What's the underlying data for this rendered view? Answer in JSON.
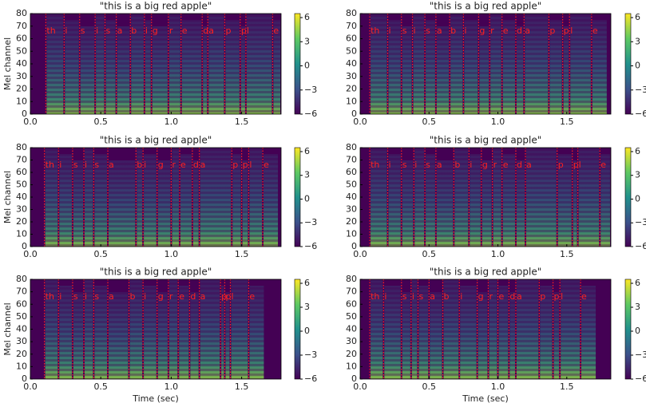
{
  "chart_data": [
    {
      "type": "spectrogram",
      "title": "\"this is a big red apple\"",
      "ylabel": "Mel channel",
      "xlim": [
        0,
        1.78
      ],
      "ylim": [
        0,
        80
      ],
      "xticks": [
        {
          "value": 0,
          "label": "0.0"
        },
        {
          "value": 0.5,
          "label": "0.5"
        },
        {
          "value": 1,
          "label": "1.0"
        },
        {
          "value": 1.5,
          "label": "1.5"
        }
      ],
      "yticks": [
        0,
        10,
        20,
        30,
        40,
        50,
        60,
        70,
        80
      ],
      "clim": [
        -6,
        6.5
      ],
      "cticks": [
        {
          "value": -6,
          "label": "−6"
        },
        {
          "value": -3,
          "label": "−3"
        },
        0,
        3,
        6
      ],
      "phonemes": {
        "labels": [
          "th",
          "i",
          "s",
          "i",
          "s",
          "a",
          "b",
          "i",
          "g",
          "r",
          "e",
          "d",
          "a",
          "p",
          "p",
          "l",
          "e"
        ],
        "times": [
          0.11,
          0.24,
          0.35,
          0.46,
          0.53,
          0.61,
          0.71,
          0.81,
          0.86,
          0.98,
          1.07,
          1.22,
          1.26,
          1.38,
          1.49,
          1.53,
          1.72
        ]
      }
    },
    {
      "type": "spectrogram",
      "title": "\"this is a big red apple\"",
      "xlim": [
        0,
        1.82
      ],
      "ylim": [
        0,
        80
      ],
      "xticks": [
        {
          "value": 0,
          "label": "0.0"
        },
        {
          "value": 0.5,
          "label": "0.5"
        },
        {
          "value": 1,
          "label": "1.0"
        },
        {
          "value": 1.5,
          "label": "1.5"
        }
      ],
      "yticks": [
        0,
        10,
        20,
        30,
        40,
        50,
        60,
        70,
        80
      ],
      "clim": [
        -6,
        6.5
      ],
      "cticks": [
        {
          "value": -6,
          "label": "−6"
        },
        {
          "value": -3,
          "label": "−3"
        },
        0,
        3,
        6
      ],
      "phonemes": {
        "labels": [
          "th",
          "i",
          "s",
          "i",
          "s",
          "a",
          "b",
          "i",
          "g",
          "r",
          "e",
          "d",
          "a",
          "p",
          "p",
          "l",
          "e"
        ],
        "times": [
          0.07,
          0.2,
          0.3,
          0.38,
          0.47,
          0.55,
          0.65,
          0.75,
          0.86,
          0.94,
          1.03,
          1.13,
          1.19,
          1.37,
          1.47,
          1.52,
          1.68
        ]
      }
    },
    {
      "type": "spectrogram",
      "title": "\"this is a big red apple\"",
      "ylabel": "Mel channel",
      "xlim": [
        0,
        1.78
      ],
      "ylim": [
        0,
        80
      ],
      "xticks": [
        {
          "value": 0,
          "label": "0.0"
        },
        {
          "value": 0.5,
          "label": "0.5"
        },
        {
          "value": 1,
          "label": "1.0"
        },
        {
          "value": 1.5,
          "label": "1.5"
        }
      ],
      "yticks": [
        0,
        10,
        20,
        30,
        40,
        50,
        60,
        70,
        80
      ],
      "clim": [
        -6,
        6.5
      ],
      "cticks": [
        {
          "value": -6,
          "label": "−6"
        },
        {
          "value": -3,
          "label": "−3"
        },
        0,
        3,
        6
      ],
      "phonemes": {
        "labels": [
          "th",
          "i",
          "s",
          "i",
          "s",
          "a",
          "b",
          "i",
          "g",
          "r",
          "e",
          "d",
          "a",
          "p",
          "p",
          "l",
          "e"
        ],
        "times": [
          0.1,
          0.2,
          0.3,
          0.38,
          0.45,
          0.55,
          0.75,
          0.8,
          0.9,
          1.0,
          1.06,
          1.15,
          1.2,
          1.43,
          1.5,
          1.55,
          1.65
        ]
      }
    },
    {
      "type": "spectrogram",
      "title": "\"this is a big red apple\"",
      "xlim": [
        0,
        1.82
      ],
      "ylim": [
        0,
        80
      ],
      "xticks": [
        {
          "value": 0,
          "label": "0.0"
        },
        {
          "value": 0.5,
          "label": "0.5"
        },
        {
          "value": 1,
          "label": "1.0"
        },
        {
          "value": 1.5,
          "label": "1.5"
        }
      ],
      "yticks": [
        0,
        10,
        20,
        30,
        40,
        50,
        60,
        70,
        80
      ],
      "clim": [
        -6,
        6.5
      ],
      "cticks": [
        {
          "value": -6,
          "label": "−6"
        },
        {
          "value": -3,
          "label": "−3"
        },
        0,
        3,
        6
      ],
      "phonemes": {
        "labels": [
          "th",
          "i",
          "s",
          "i",
          "s",
          "a",
          "b",
          "i",
          "g",
          "r",
          "e",
          "d",
          "a",
          "p",
          "p",
          "l",
          "e"
        ],
        "times": [
          0.07,
          0.2,
          0.3,
          0.39,
          0.47,
          0.55,
          0.68,
          0.79,
          0.88,
          0.96,
          1.03,
          1.13,
          1.2,
          1.43,
          1.54,
          1.58,
          1.74
        ]
      }
    },
    {
      "type": "spectrogram",
      "title": "\"this is a big red apple\"",
      "ylabel": "Mel channel",
      "xlabel": "Time (sec)",
      "xlim": [
        0,
        1.78
      ],
      "ylim": [
        0,
        80
      ],
      "xticks": [
        {
          "value": 0,
          "label": "0.0"
        },
        {
          "value": 0.5,
          "label": "0.5"
        },
        {
          "value": 1,
          "label": "1.0"
        },
        {
          "value": 1.5,
          "label": "1.5"
        }
      ],
      "yticks": [
        0,
        10,
        20,
        30,
        40,
        50,
        60,
        70,
        80
      ],
      "clim": [
        -6,
        6.5
      ],
      "cticks": [
        {
          "value": -6,
          "label": "−6"
        },
        {
          "value": -3,
          "label": "−3"
        },
        0,
        3,
        6
      ],
      "phonemes": {
        "labels": [
          "th",
          "i",
          "s",
          "i",
          "s",
          "a",
          "b",
          "i",
          "g",
          "r",
          "e",
          "d",
          "a",
          "p",
          "p",
          "l",
          "e"
        ],
        "times": [
          0.1,
          0.2,
          0.3,
          0.38,
          0.45,
          0.55,
          0.7,
          0.8,
          0.9,
          0.98,
          1.05,
          1.13,
          1.2,
          1.35,
          1.38,
          1.42,
          1.55
        ]
      }
    },
    {
      "type": "spectrogram",
      "title": "\"this is a big red apple\"",
      "xlabel": "Time (sec)",
      "xlim": [
        0,
        1.82
      ],
      "ylim": [
        0,
        80
      ],
      "xticks": [
        {
          "value": 0,
          "label": "0.0"
        },
        {
          "value": 0.5,
          "label": "0.5"
        },
        {
          "value": 1,
          "label": "1.0"
        },
        {
          "value": 1.5,
          "label": "1.5"
        }
      ],
      "yticks": [
        0,
        10,
        20,
        30,
        40,
        50,
        60,
        70,
        80
      ],
      "clim": [
        -6,
        6.5
      ],
      "cticks": [
        {
          "value": -6,
          "label": "−6"
        },
        {
          "value": -3,
          "label": "−3"
        },
        0,
        3,
        6
      ],
      "phonemes": {
        "labels": [
          "th",
          "i",
          "s",
          "i",
          "s",
          "a",
          "b",
          "i",
          "g",
          "r",
          "e",
          "d",
          "a",
          "p",
          "p",
          "l",
          "e"
        ],
        "times": [
          0.07,
          0.17,
          0.3,
          0.37,
          0.42,
          0.5,
          0.6,
          0.72,
          0.85,
          0.93,
          1.0,
          1.08,
          1.13,
          1.3,
          1.4,
          1.45,
          1.6
        ]
      }
    }
  ]
}
